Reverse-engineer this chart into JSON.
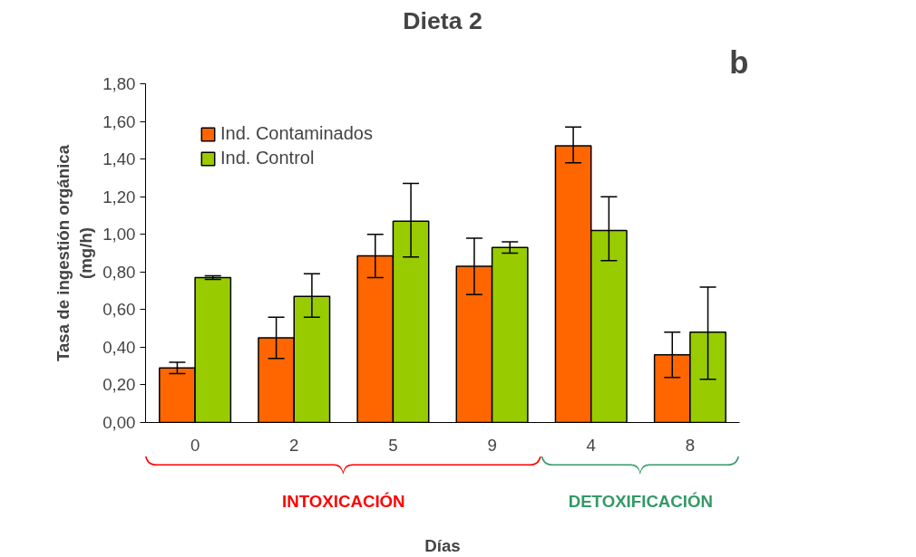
{
  "chart_data": {
    "type": "bar",
    "title": "Dieta 2",
    "xlabel": "Días",
    "ylabel": "Tasa de ingestión orgánica\n(mg/h)",
    "categories": [
      "0",
      "2",
      "5",
      "9",
      "4",
      "8"
    ],
    "series": [
      {
        "name": "Ind. Contaminados",
        "color": "#ff6600",
        "values": [
          0.29,
          0.45,
          0.885,
          0.83,
          1.47,
          0.36
        ],
        "errors": [
          [
            0.26,
            0.32
          ],
          [
            0.34,
            0.56
          ],
          [
            0.77,
            1.0
          ],
          [
            0.68,
            0.98
          ],
          [
            1.38,
            1.57
          ],
          [
            0.24,
            0.48
          ]
        ]
      },
      {
        "name": "Ind. Control",
        "color": "#99cc00",
        "values": [
          0.77,
          0.67,
          1.07,
          0.93,
          1.02,
          0.48
        ],
        "errors": [
          [
            0.76,
            0.78
          ],
          [
            0.56,
            0.79
          ],
          [
            0.88,
            1.27
          ],
          [
            0.9,
            0.96
          ],
          [
            0.86,
            1.2
          ],
          [
            0.23,
            0.72
          ]
        ]
      }
    ],
    "ylim": [
      0,
      1.8
    ],
    "yticks": [
      {
        "value": 0,
        "label": "0,00"
      },
      {
        "value": 0.2,
        "label": "0,20"
      },
      {
        "value": 0.4,
        "label": "0,40"
      },
      {
        "value": 0.6,
        "label": "0,60"
      },
      {
        "value": 0.8,
        "label": "0,80"
      },
      {
        "value": 1.0,
        "label": "1,00"
      },
      {
        "value": 1.2,
        "label": "1,20"
      },
      {
        "value": 1.4,
        "label": "1,40"
      },
      {
        "value": 1.6,
        "label": "1,60"
      },
      {
        "value": 1.8,
        "label": "1,80"
      }
    ],
    "grid": false,
    "legend": "top left",
    "annotations": [
      "b",
      "INTOXICACIÓN",
      "DETOXIFICACIÓN"
    ]
  }
}
